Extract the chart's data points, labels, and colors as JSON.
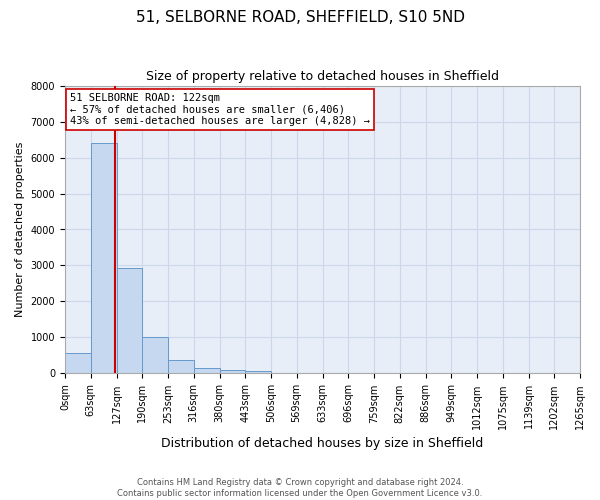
{
  "title_line1": "51, SELBORNE ROAD, SHEFFIELD, S10 5ND",
  "title_line2": "Size of property relative to detached houses in Sheffield",
  "xlabel": "Distribution of detached houses by size in Sheffield",
  "ylabel": "Number of detached properties",
  "bar_edges": [
    0,
    63,
    127,
    190,
    253,
    316,
    380,
    443,
    506,
    569,
    633,
    696,
    759,
    822,
    886,
    949,
    1012,
    1075,
    1139,
    1202,
    1265
  ],
  "bar_heights": [
    580,
    6406,
    2930,
    1000,
    380,
    160,
    105,
    60,
    0,
    0,
    0,
    0,
    0,
    0,
    0,
    0,
    0,
    0,
    0,
    0
  ],
  "bar_color": "#c5d8ef",
  "bar_edgecolor": "#6699cc",
  "property_value": 122,
  "vline_color": "#cc0000",
  "annotation_text": "51 SELBORNE ROAD: 122sqm\n← 57% of detached houses are smaller (6,406)\n43% of semi-detached houses are larger (4,828) →",
  "annotation_box_edgecolor": "#cc0000",
  "annotation_box_facecolor": "white",
  "ylim": [
    0,
    8000
  ],
  "yticks": [
    0,
    1000,
    2000,
    3000,
    4000,
    5000,
    6000,
    7000,
    8000
  ],
  "tick_labels": [
    "0sqm",
    "63sqm",
    "127sqm",
    "190sqm",
    "253sqm",
    "316sqm",
    "380sqm",
    "443sqm",
    "506sqm",
    "569sqm",
    "633sqm",
    "696sqm",
    "759sqm",
    "822sqm",
    "886sqm",
    "949sqm",
    "1012sqm",
    "1075sqm",
    "1139sqm",
    "1202sqm",
    "1265sqm"
  ],
  "footer_line1": "Contains HM Land Registry data © Crown copyright and database right 2024.",
  "footer_line2": "Contains public sector information licensed under the Open Government Licence v3.0.",
  "grid_color": "#ccd8ea",
  "background_color": "#e8eef8",
  "fig_bg": "white"
}
